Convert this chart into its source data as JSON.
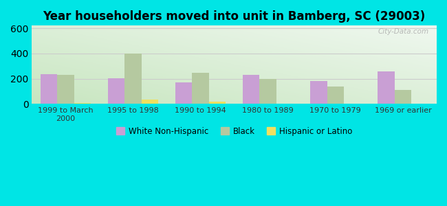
{
  "title": "Year householders moved into unit in Bamberg, SC (29003)",
  "categories": [
    "1999 to March\n2000",
    "1995 to 1998",
    "1990 to 1994",
    "1980 to 1989",
    "1970 to 1979",
    "1969 or earlier"
  ],
  "white_non_hispanic": [
    238,
    205,
    170,
    228,
    183,
    260
  ],
  "black": [
    228,
    400,
    248,
    198,
    140,
    113
  ],
  "hispanic_or_latino": [
    10,
    37,
    20,
    0,
    0,
    0
  ],
  "bar_colors": {
    "white": "#c99fd4",
    "black": "#b5c9a0",
    "hispanic": "#f0e060"
  },
  "ylim": [
    0,
    620
  ],
  "yticks": [
    0,
    200,
    400,
    600
  ],
  "background_color": "#00e5e5",
  "grid_color": "#cccccc",
  "watermark": "City-Data.com",
  "legend_labels": [
    "White Non-Hispanic",
    "Black",
    "Hispanic or Latino"
  ],
  "bar_width": 0.25
}
